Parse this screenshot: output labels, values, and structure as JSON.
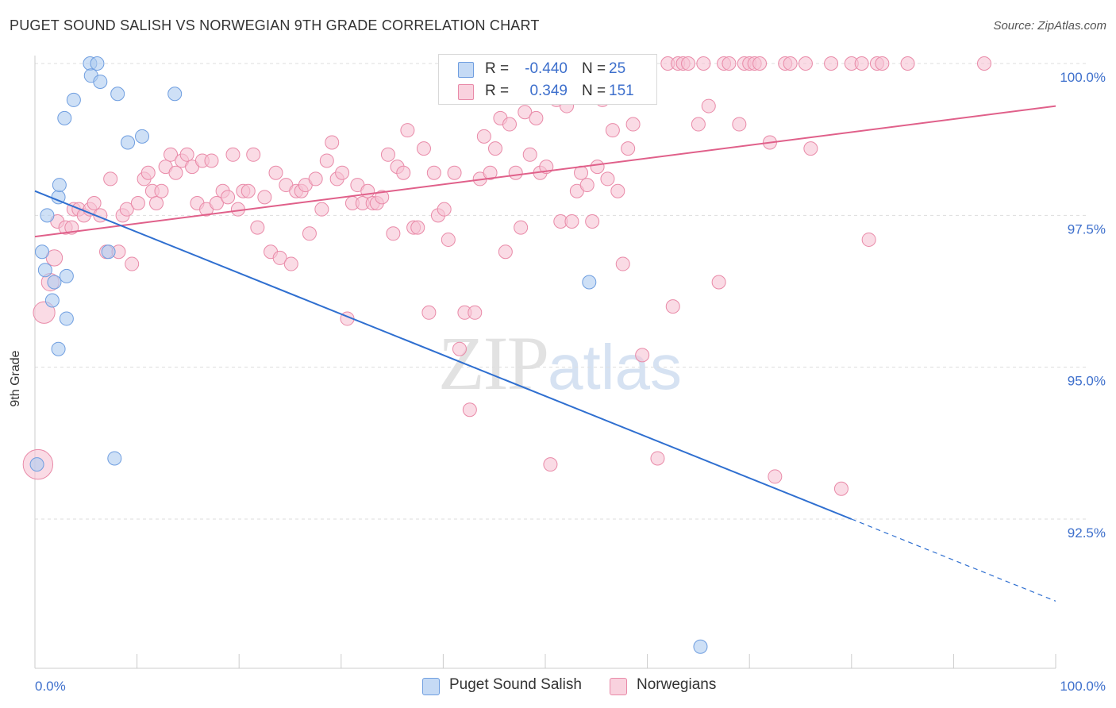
{
  "title": "PUGET SOUND SALISH VS NORWEGIAN 9TH GRADE CORRELATION CHART",
  "source": "Source: ZipAtlas.com",
  "watermark": {
    "zip": "ZIP",
    "atlas": "atlas"
  },
  "legend_top": {
    "rows": [
      {
        "r_label": "R =",
        "r_value": "-0.440",
        "n_label": "N =",
        "n_value": "25"
      },
      {
        "r_label": "R =",
        "r_value": "0.349",
        "n_label": "N =",
        "n_value": "151"
      }
    ]
  },
  "legend_bottom": {
    "items": [
      {
        "label": "Puget Sound Salish"
      },
      {
        "label": "Norwegians"
      }
    ]
  },
  "chart_data": {
    "type": "scatter",
    "title": "PUGET SOUND SALISH VS NORWEGIAN 9TH GRADE CORRELATION CHART",
    "xlabel": "",
    "ylabel": "9th Grade",
    "xlim": [
      0,
      100
    ],
    "ylim": [
      90.3,
      100.2
    ],
    "x_tick_labels": [
      "0.0%",
      "100.0%"
    ],
    "y_ticks": [
      {
        "value": 100.0,
        "label": "100.0%"
      },
      {
        "value": 97.5,
        "label": "97.5%"
      },
      {
        "value": 95.0,
        "label": "95.0%"
      },
      {
        "value": 92.5,
        "label": "92.5%"
      }
    ],
    "colors": {
      "salish_fill": "#aecbf0",
      "salish_stroke": "#6f9ee0",
      "salish_line": "#2f6fd0",
      "norw_fill": "#f7c3d3",
      "norw_stroke": "#e98aa8",
      "norw_line": "#e0608a",
      "grid": "#dddddd",
      "tick_label": "#3d6fcc",
      "axis": "#cccccc"
    },
    "series": [
      {
        "name": "Puget Sound Salish",
        "trend": {
          "x0": 0,
          "y0": 97.9,
          "x1": 80,
          "y1": 92.5,
          "dash_x1": 100,
          "dash_y1": 91.15
        },
        "points": [
          [
            0.2,
            93.4,
            1
          ],
          [
            0.7,
            96.9,
            1
          ],
          [
            1.0,
            96.6,
            1
          ],
          [
            1.2,
            97.5,
            1
          ],
          [
            1.7,
            96.1,
            1
          ],
          [
            1.9,
            96.4,
            1
          ],
          [
            2.3,
            95.3,
            1
          ],
          [
            2.3,
            97.8,
            1
          ],
          [
            2.4,
            98.0,
            1
          ],
          [
            2.9,
            99.1,
            1
          ],
          [
            3.1,
            96.5,
            1
          ],
          [
            3.1,
            95.8,
            1
          ],
          [
            3.8,
            99.4,
            1
          ],
          [
            5.4,
            100.0,
            1
          ],
          [
            5.5,
            99.8,
            1
          ],
          [
            6.1,
            100.0,
            1
          ],
          [
            6.4,
            99.7,
            1
          ],
          [
            7.2,
            96.9,
            1
          ],
          [
            7.8,
            93.5,
            1
          ],
          [
            8.1,
            99.5,
            1
          ],
          [
            9.1,
            98.7,
            1
          ],
          [
            10.5,
            98.8,
            1
          ],
          [
            13.7,
            99.5,
            1
          ],
          [
            54.3,
            96.4,
            1
          ],
          [
            65.2,
            90.4,
            1
          ]
        ]
      },
      {
        "name": "Norwegians",
        "trend": {
          "x0": 0,
          "y0": 97.15,
          "x1": 100,
          "y1": 99.3
        },
        "points": [
          [
            0.3,
            93.4,
            2.2
          ],
          [
            0.9,
            95.9,
            1.6
          ],
          [
            1.5,
            96.4,
            1.3
          ],
          [
            1.9,
            96.8,
            1.2
          ],
          [
            2.2,
            97.4,
            1
          ],
          [
            3.0,
            97.3,
            1
          ],
          [
            3.6,
            97.3,
            1
          ],
          [
            3.8,
            97.6,
            1
          ],
          [
            4.3,
            97.6,
            1
          ],
          [
            4.8,
            97.5,
            1
          ],
          [
            5.4,
            97.6,
            1
          ],
          [
            5.8,
            97.7,
            1
          ],
          [
            6.4,
            97.5,
            1
          ],
          [
            7.0,
            96.9,
            1
          ],
          [
            7.4,
            98.1,
            1
          ],
          [
            8.2,
            96.9,
            1
          ],
          [
            8.6,
            97.5,
            1
          ],
          [
            9.0,
            97.6,
            1
          ],
          [
            9.5,
            96.7,
            1
          ],
          [
            10.1,
            97.7,
            1
          ],
          [
            10.7,
            98.1,
            1
          ],
          [
            11.1,
            98.2,
            1
          ],
          [
            11.5,
            97.9,
            1
          ],
          [
            11.9,
            97.7,
            1
          ],
          [
            12.4,
            97.9,
            1
          ],
          [
            12.8,
            98.3,
            1
          ],
          [
            13.3,
            98.5,
            1
          ],
          [
            13.8,
            98.2,
            1
          ],
          [
            14.4,
            98.4,
            1
          ],
          [
            14.9,
            98.5,
            1
          ],
          [
            15.4,
            98.3,
            1
          ],
          [
            15.9,
            97.7,
            1
          ],
          [
            16.4,
            98.4,
            1
          ],
          [
            16.8,
            97.6,
            1
          ],
          [
            17.3,
            98.4,
            1
          ],
          [
            17.8,
            97.7,
            1
          ],
          [
            18.4,
            97.9,
            1
          ],
          [
            18.9,
            97.8,
            1
          ],
          [
            19.4,
            98.5,
            1
          ],
          [
            19.9,
            97.6,
            1
          ],
          [
            20.4,
            97.9,
            1
          ],
          [
            20.9,
            97.9,
            1
          ],
          [
            21.4,
            98.5,
            1
          ],
          [
            21.8,
            97.3,
            1
          ],
          [
            22.5,
            97.8,
            1
          ],
          [
            23.1,
            96.9,
            1
          ],
          [
            23.6,
            98.2,
            1
          ],
          [
            24.0,
            96.8,
            1
          ],
          [
            24.6,
            98.0,
            1
          ],
          [
            25.1,
            96.7,
            1
          ],
          [
            25.6,
            97.9,
            1
          ],
          [
            26.1,
            97.9,
            1
          ],
          [
            26.5,
            98.0,
            1
          ],
          [
            26.9,
            97.2,
            1
          ],
          [
            27.5,
            98.1,
            1
          ],
          [
            28.1,
            97.6,
            1
          ],
          [
            28.6,
            98.4,
            1
          ],
          [
            29.1,
            98.7,
            1
          ],
          [
            29.6,
            98.1,
            1
          ],
          [
            30.1,
            98.2,
            1
          ],
          [
            30.6,
            95.8,
            1
          ],
          [
            31.1,
            97.7,
            1
          ],
          [
            31.6,
            98.0,
            1
          ],
          [
            32.1,
            97.7,
            1
          ],
          [
            32.6,
            97.9,
            1
          ],
          [
            33.1,
            97.7,
            1
          ],
          [
            33.5,
            97.7,
            1
          ],
          [
            34.0,
            97.8,
            1
          ],
          [
            34.6,
            98.5,
            1
          ],
          [
            35.1,
            97.2,
            1
          ],
          [
            35.5,
            98.3,
            1
          ],
          [
            36.1,
            98.2,
            1
          ],
          [
            36.5,
            98.9,
            1
          ],
          [
            37.1,
            97.3,
            1
          ],
          [
            37.5,
            97.3,
            1
          ],
          [
            38.1,
            98.6,
            1
          ],
          [
            38.6,
            95.9,
            1
          ],
          [
            39.1,
            98.2,
            1
          ],
          [
            39.5,
            97.5,
            1
          ],
          [
            40.1,
            97.6,
            1
          ],
          [
            40.5,
            97.1,
            1
          ],
          [
            41.1,
            98.2,
            1
          ],
          [
            41.6,
            95.3,
            1
          ],
          [
            42.1,
            95.9,
            1
          ],
          [
            42.6,
            94.3,
            1
          ],
          [
            43.1,
            95.9,
            1
          ],
          [
            43.6,
            98.1,
            1
          ],
          [
            44.0,
            98.8,
            1
          ],
          [
            44.6,
            98.2,
            1
          ],
          [
            45.1,
            98.6,
            1
          ],
          [
            45.6,
            99.1,
            1
          ],
          [
            46.1,
            96.9,
            1
          ],
          [
            46.5,
            99.0,
            1
          ],
          [
            47.1,
            98.2,
            1
          ],
          [
            47.6,
            97.3,
            1
          ],
          [
            48.0,
            99.2,
            1
          ],
          [
            48.5,
            98.5,
            1
          ],
          [
            49.1,
            99.1,
            1
          ],
          [
            49.5,
            98.2,
            1
          ],
          [
            50.1,
            98.3,
            1
          ],
          [
            50.5,
            93.4,
            1
          ],
          [
            51.1,
            99.4,
            1
          ],
          [
            51.5,
            97.4,
            1
          ],
          [
            52.1,
            99.3,
            1
          ],
          [
            52.6,
            97.4,
            1
          ],
          [
            53.1,
            97.9,
            1
          ],
          [
            53.5,
            98.2,
            1
          ],
          [
            54.1,
            98.0,
            1
          ],
          [
            54.6,
            97.4,
            1
          ],
          [
            55.1,
            98.3,
            1
          ],
          [
            55.6,
            99.4,
            1
          ],
          [
            56.1,
            98.1,
            1
          ],
          [
            56.6,
            98.9,
            1
          ],
          [
            57.1,
            97.9,
            1
          ],
          [
            57.6,
            96.7,
            1
          ],
          [
            58.1,
            98.6,
            1
          ],
          [
            58.6,
            99.0,
            1
          ],
          [
            59.5,
            95.2,
            1
          ],
          [
            60.0,
            100.0,
            1
          ],
          [
            61.0,
            93.5,
            1
          ],
          [
            62.0,
            100.0,
            1
          ],
          [
            62.5,
            96.0,
            1
          ],
          [
            63.0,
            100.0,
            1
          ],
          [
            63.5,
            100.0,
            1
          ],
          [
            64.0,
            100.0,
            1
          ],
          [
            65.0,
            99.0,
            1
          ],
          [
            65.5,
            100.0,
            1
          ],
          [
            66.0,
            99.3,
            1
          ],
          [
            67.0,
            96.4,
            1
          ],
          [
            67.5,
            100.0,
            1
          ],
          [
            68.0,
            100.0,
            1
          ],
          [
            69.0,
            99.0,
            1
          ],
          [
            69.5,
            100.0,
            1
          ],
          [
            70.0,
            100.0,
            1
          ],
          [
            70.5,
            100.0,
            1
          ],
          [
            71.0,
            100.0,
            1
          ],
          [
            72.0,
            98.7,
            1
          ],
          [
            72.5,
            93.2,
            1
          ],
          [
            73.5,
            100.0,
            1
          ],
          [
            74.0,
            100.0,
            1
          ],
          [
            75.5,
            100.0,
            1
          ],
          [
            76.0,
            98.6,
            1
          ],
          [
            78.0,
            100.0,
            1
          ],
          [
            79.0,
            93.0,
            1
          ],
          [
            80.0,
            100.0,
            1
          ],
          [
            81.0,
            100.0,
            1
          ],
          [
            81.7,
            97.1,
            1
          ],
          [
            82.5,
            100.0,
            1
          ],
          [
            83.0,
            100.0,
            1
          ],
          [
            85.5,
            100.0,
            1
          ],
          [
            93.0,
            100.0,
            1
          ]
        ]
      }
    ]
  }
}
